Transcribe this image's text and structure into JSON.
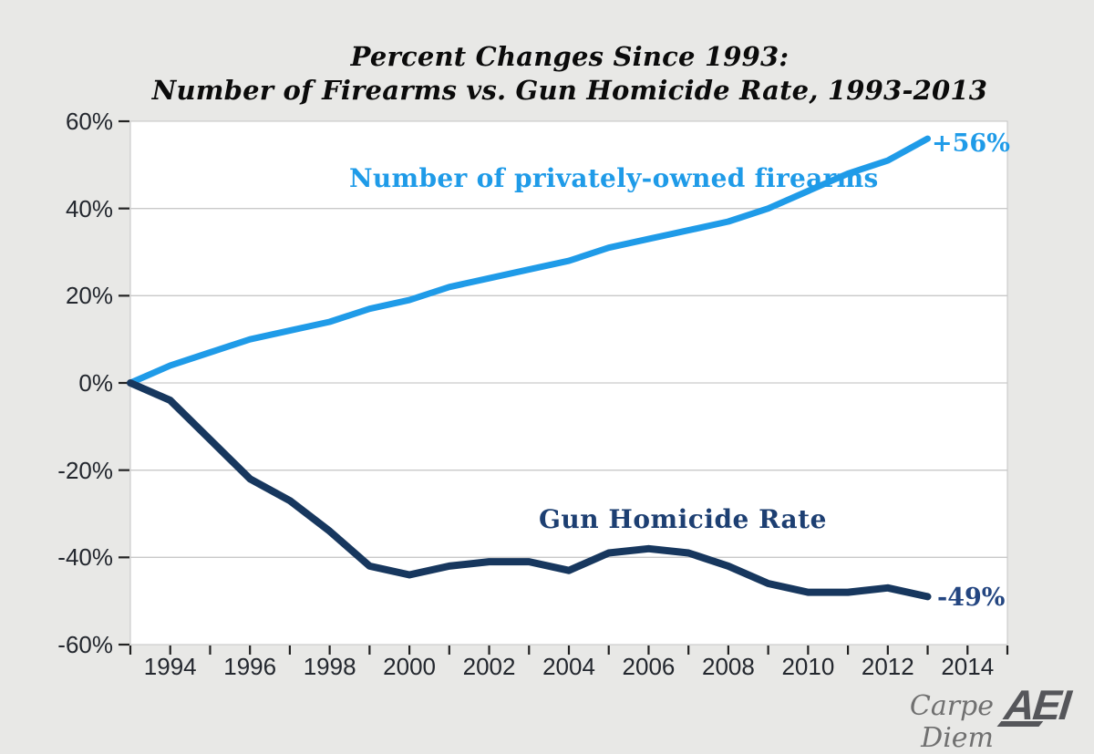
{
  "title": {
    "line1": "Percent Changes Since 1993:",
    "line2": "Number of Firearms vs. Gun Homicide Rate, 1993-2013"
  },
  "chart_data": {
    "type": "line",
    "x": [
      1993,
      1994,
      1995,
      1996,
      1997,
      1998,
      1999,
      2000,
      2001,
      2002,
      2003,
      2004,
      2005,
      2006,
      2007,
      2008,
      2009,
      2010,
      2011,
      2012,
      2013
    ],
    "series": [
      {
        "name": "Number of privately-owned firearms",
        "color": "#1f9be8",
        "values": [
          0,
          4,
          7,
          10,
          12,
          14,
          17,
          19,
          22,
          24,
          26,
          28,
          31,
          33,
          35,
          37,
          40,
          44,
          48,
          51,
          56
        ],
        "end_label": "+56%"
      },
      {
        "name": "Gun Homicide Rate",
        "color": "#17375e",
        "values": [
          0,
          -4,
          -13,
          -22,
          -27,
          -34,
          -42,
          -44,
          -42,
          -41,
          -41,
          -43,
          -39,
          -38,
          -39,
          -42,
          -46,
          -48,
          -48,
          -47,
          -49
        ],
        "end_label": "-49%"
      }
    ],
    "xlim": [
      1993,
      2015
    ],
    "ylim": [
      -60,
      60
    ],
    "grid": true,
    "legend_position": "inline-annotations",
    "y_ticks": [
      {
        "value": 60,
        "label": "60%"
      },
      {
        "value": 40,
        "label": "40%"
      },
      {
        "value": 20,
        "label": "20%"
      },
      {
        "value": 0,
        "label": "0%"
      },
      {
        "value": -20,
        "label": "-20%"
      },
      {
        "value": -40,
        "label": "-40%"
      },
      {
        "value": -60,
        "label": "-60%"
      }
    ],
    "x_tick_years": [
      1993,
      1994,
      1995,
      1996,
      1997,
      1998,
      1999,
      2000,
      2001,
      2002,
      2003,
      2004,
      2005,
      2006,
      2007,
      2008,
      2009,
      2010,
      2011,
      2012,
      2013,
      2014,
      2015
    ],
    "x_tick_labels": [
      {
        "year": 1994,
        "label": "1994"
      },
      {
        "year": 1996,
        "label": "1996"
      },
      {
        "year": 1998,
        "label": "1998"
      },
      {
        "year": 2000,
        "label": "2000"
      },
      {
        "year": 2002,
        "label": "2002"
      },
      {
        "year": 2004,
        "label": "2004"
      },
      {
        "year": 2006,
        "label": "2006"
      },
      {
        "year": 2008,
        "label": "2008"
      },
      {
        "year": 2010,
        "label": "2010"
      },
      {
        "year": 2012,
        "label": "2012"
      },
      {
        "year": 2014,
        "label": "2014"
      }
    ]
  },
  "footer": {
    "credit": "Carpe Diem",
    "logo_text": "AEI"
  },
  "colors": {
    "background": "#e8e8e6",
    "plot_background": "#ffffff",
    "gridline": "#c9c9c9",
    "plot_border": "#c4c4c4",
    "tick": "#222222",
    "axis_text": "#23272e",
    "firearms_blue": "#1f9be8",
    "homicide_navy": "#17375e",
    "title_text": "#0b0b0b",
    "credit_gray": "#707070",
    "logo_gray": "#55565a"
  }
}
